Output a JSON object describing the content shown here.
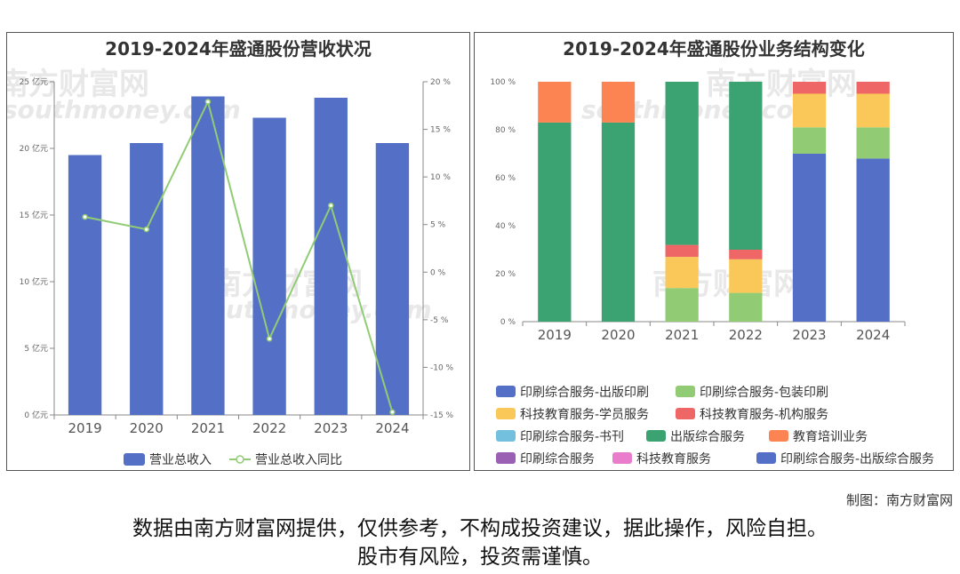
{
  "left_chart": {
    "title": "2019-2024年盛通股份营收状况",
    "chart_data": {
      "type": "bar",
      "categories": [
        "2019",
        "2020",
        "2021",
        "2022",
        "2023",
        "2024"
      ],
      "series": [
        {
          "name": "营业总收入",
          "type": "bar",
          "axis": "left",
          "values": [
            19.5,
            20.4,
            23.9,
            22.3,
            23.8,
            20.4
          ],
          "color": "#5470c6"
        },
        {
          "name": "营业总收入同比",
          "type": "line",
          "axis": "right",
          "values": [
            5.8,
            4.5,
            17.9,
            -7.0,
            7.0,
            -14.7
          ],
          "color": "#91cc75"
        }
      ],
      "y_left": {
        "ticks": [
          "0 亿元",
          "5 亿元",
          "10 亿元",
          "15 亿元",
          "20 亿元",
          "25 亿元"
        ],
        "ylim": [
          0,
          25
        ]
      },
      "y_right": {
        "ticks": [
          "-15 %",
          "-10 %",
          "-5 %",
          "0 %",
          "5 %",
          "10 %",
          "15 %",
          "20 %"
        ],
        "ylim": [
          -15,
          20
        ]
      },
      "legend_position": "bottom"
    }
  },
  "right_chart": {
    "title": "2019-2024年盛通股份业务结构变化",
    "chart_data": {
      "type": "bar",
      "stacked": true,
      "categories": [
        "2019",
        "2020",
        "2021",
        "2022",
        "2023",
        "2024"
      ],
      "y_ticks": [
        "0 %",
        "20 %",
        "40 %",
        "60 %",
        "80 %",
        "100 %"
      ],
      "ylim": [
        0,
        100
      ],
      "series": [
        {
          "name": "印刷综合服务-出版印刷",
          "color": "#5470c6",
          "values": [
            0,
            0,
            0,
            0,
            70,
            68
          ]
        },
        {
          "name": "印刷综合服务-包装印刷",
          "color": "#91cc75",
          "values": [
            0,
            0,
            14,
            12,
            11,
            13
          ]
        },
        {
          "name": "科技教育服务-学员服务",
          "color": "#fac858",
          "values": [
            0,
            0,
            13,
            14,
            14,
            14
          ]
        },
        {
          "name": "科技教育服务-机构服务",
          "color": "#ee6666",
          "values": [
            0,
            0,
            5,
            4,
            5,
            5
          ]
        },
        {
          "name": "印刷综合服务-书刊",
          "color": "#73c0de",
          "values": [
            0,
            0,
            0,
            0,
            0,
            0
          ]
        },
        {
          "name": "出版综合服务",
          "color": "#3ba272",
          "values": [
            83,
            83,
            68,
            70,
            0,
            0
          ]
        },
        {
          "name": "教育培训业务",
          "color": "#fc8452",
          "values": [
            17,
            17,
            0,
            0,
            0,
            0
          ]
        },
        {
          "name": "印刷综合服务",
          "color": "#9a60b4",
          "values": [
            0,
            0,
            0,
            0,
            0,
            0
          ]
        },
        {
          "name": "科技教育服务",
          "color": "#ea7ccc",
          "values": [
            0,
            0,
            0,
            0,
            0,
            0
          ]
        },
        {
          "name": "印刷综合服务-出版综合服务",
          "color": "#5470c6",
          "values": [
            0,
            0,
            0,
            0,
            0,
            0
          ]
        }
      ],
      "legend_position": "bottom"
    }
  },
  "watermark": {
    "brand": "南方财富网",
    "site": "southmoney.com"
  },
  "credit": "制图：南方财富网",
  "disclaimer": [
    "数据由南方财富网提供，仅供参考，不构成投资建议，据此操作，风险自担。",
    "股市有风险，投资需谨慎。"
  ]
}
